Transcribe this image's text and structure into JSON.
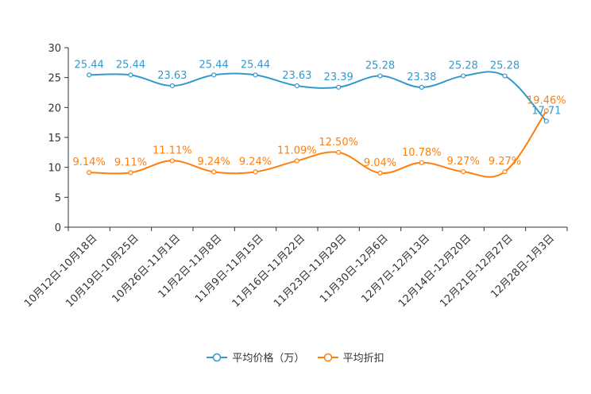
{
  "chart_data": {
    "type": "line",
    "title": "",
    "xlabel": "",
    "ylabel": "",
    "ylim": [
      0,
      30
    ],
    "yticks": [
      0,
      5,
      10,
      15,
      20,
      25,
      30
    ],
    "categories": [
      "10月12日-10月18日",
      "10月19日-10月25日",
      "10月26日-11月1日",
      "11月2日-11月8日",
      "11月9日-11月15日",
      "11月16日-11月22日",
      "11月23日-11月29日",
      "11月30日-12月6日",
      "12月7日-12月13日",
      "12月14日-12月20日",
      "12月21日-12月27日",
      "12月28日-1月3日"
    ],
    "series": [
      {
        "name": "平均价格（万）",
        "color": "#3399cc",
        "values": [
          25.44,
          25.44,
          23.63,
          25.44,
          25.44,
          23.63,
          23.39,
          25.28,
          23.38,
          25.28,
          25.28,
          17.71
        ],
        "labels": [
          "25.44",
          "25.44",
          "23.63",
          "25.44",
          "25.44",
          "23.63",
          "23.39",
          "25.28",
          "23.38",
          "25.28",
          "25.28",
          "17.71"
        ]
      },
      {
        "name": "平均折扣",
        "color": "#ff7f0e",
        "values": [
          9.14,
          9.11,
          11.11,
          9.24,
          9.24,
          11.09,
          12.5,
          9.04,
          10.78,
          9.27,
          9.27,
          19.46
        ],
        "labels": [
          "9.14%",
          "9.11%",
          "11.11%",
          "9.24%",
          "9.24%",
          "11.09%",
          "12.50%",
          "9.04%",
          "10.78%",
          "9.27%",
          "9.27%",
          "19.46%"
        ]
      }
    ],
    "legend_position": "bottom"
  }
}
